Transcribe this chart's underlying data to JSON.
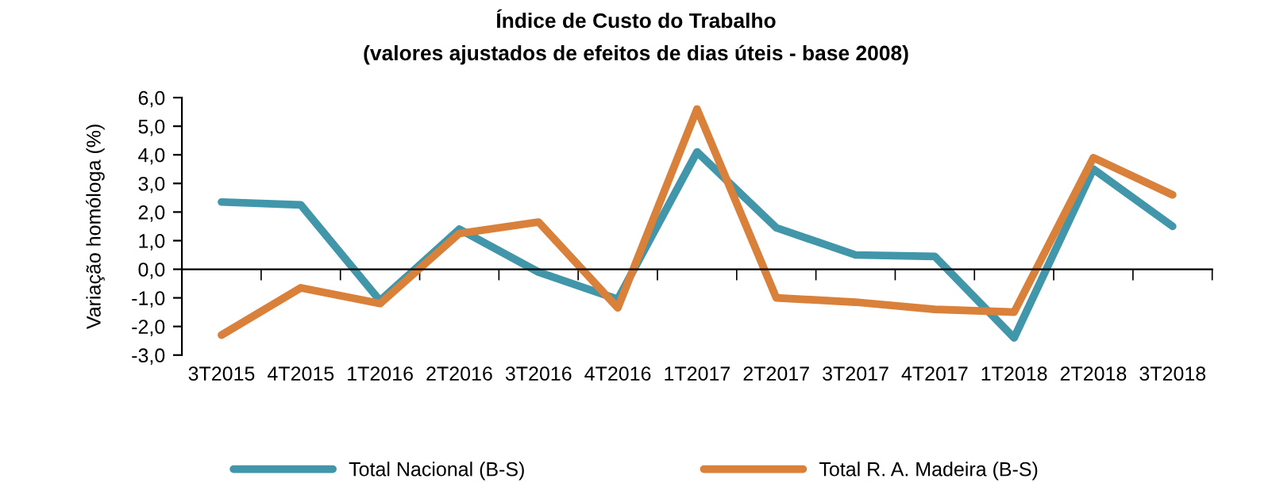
{
  "chart_data": {
    "type": "line",
    "title": "Índice de Custo do Trabalho",
    "subtitle": "(valores ajustados de efeitos de dias úteis - base 2008)",
    "ylabel": "Variação homóloga (%)",
    "categories": [
      "3T2015",
      "4T2015",
      "1T2016",
      "2T2016",
      "3T2016",
      "4T2016",
      "1T2017",
      "2T2017",
      "3T2017",
      "4T2017",
      "1T2018",
      "2T2018",
      "3T2018"
    ],
    "series": [
      {
        "name": "Total Nacional (B-S)",
        "color": "#4196aa",
        "values": [
          2.35,
          2.25,
          -1.1,
          1.4,
          -0.1,
          -1.05,
          4.1,
          1.45,
          0.5,
          0.45,
          -2.4,
          3.5,
          1.5
        ]
      },
      {
        "name": "Total R. A. Madeira (B-S)",
        "color": "#d9803a",
        "values": [
          -2.3,
          -0.65,
          -1.2,
          1.25,
          1.65,
          -1.35,
          5.6,
          -1.0,
          -1.15,
          -1.4,
          -1.5,
          3.9,
          2.6
        ]
      }
    ],
    "ylim": [
      -3,
      6
    ],
    "yticks": [
      {
        "value": -3,
        "label": "-3,0"
      },
      {
        "value": -2,
        "label": "-2,0"
      },
      {
        "value": -1,
        "label": "-1,0"
      },
      {
        "value": 0,
        "label": "0,0"
      },
      {
        "value": 1,
        "label": "1,0"
      },
      {
        "value": 2,
        "label": "2,0"
      },
      {
        "value": 3,
        "label": "3,0"
      },
      {
        "value": 4,
        "label": "4,0"
      },
      {
        "value": 5,
        "label": "5,0"
      },
      {
        "value": 6,
        "label": "6,0"
      }
    ],
    "legend": "bottom",
    "marker": "none",
    "line_style": "solid"
  }
}
